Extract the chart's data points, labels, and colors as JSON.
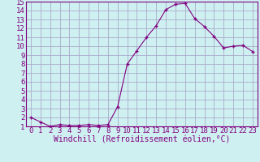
{
  "x": [
    0,
    1,
    2,
    3,
    4,
    5,
    6,
    7,
    8,
    9,
    10,
    11,
    12,
    13,
    14,
    15,
    16,
    17,
    18,
    19,
    20,
    21,
    22,
    23
  ],
  "y": [
    2.0,
    1.5,
    1.0,
    1.2,
    1.1,
    1.1,
    1.2,
    1.1,
    1.2,
    3.2,
    8.0,
    9.5,
    11.0,
    12.3,
    14.1,
    14.7,
    14.8,
    13.1,
    12.2,
    11.1,
    9.8,
    10.0,
    10.1,
    9.4
  ],
  "line_color": "#800080",
  "marker": "+",
  "marker_size": 3,
  "bg_color": "#cff0f0",
  "grid_color": "#aaaacc",
  "xlabel": "Windchill (Refroidissement éolien,°C)",
  "xlabel_color": "#800080",
  "xlabel_fontsize": 7,
  "tick_color": "#800080",
  "tick_fontsize": 6.5,
  "ylim": [
    1,
    15
  ],
  "xlim": [
    -0.5,
    23.5
  ],
  "yticks": [
    1,
    2,
    3,
    4,
    5,
    6,
    7,
    8,
    9,
    10,
    11,
    12,
    13,
    14,
    15
  ],
  "xticks": [
    0,
    1,
    2,
    3,
    4,
    5,
    6,
    7,
    8,
    9,
    10,
    11,
    12,
    13,
    14,
    15,
    16,
    17,
    18,
    19,
    20,
    21,
    22,
    23
  ]
}
